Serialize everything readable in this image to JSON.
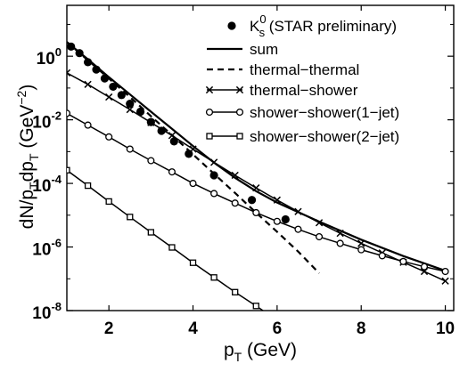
{
  "chart_data": {
    "type": "line",
    "xlabel": "p_T (GeV)",
    "ylabel": "dN/p_T dp_T (GeV^-2)",
    "xlim": [
      1,
      10.2
    ],
    "ylim_log10": [
      -8,
      1.6
    ],
    "yscale": "log",
    "grid": false,
    "legend_position": "top-right",
    "x_ticks": [
      {
        "value": 2,
        "label": "2"
      },
      {
        "value": 4,
        "label": "4"
      },
      {
        "value": 6,
        "label": "6"
      },
      {
        "value": 8,
        "label": "8"
      },
      {
        "value": 10,
        "label": "10"
      }
    ],
    "y_ticks": [
      {
        "log10": 0,
        "base": "10",
        "exp": "0"
      },
      {
        "log10": -2,
        "base": "10",
        "exp": "-2"
      },
      {
        "log10": -4,
        "base": "10",
        "exp": "-4"
      },
      {
        "log10": -6,
        "base": "10",
        "exp": "-6"
      },
      {
        "log10": -8,
        "base": "10",
        "exp": "-8"
      }
    ],
    "series": [
      {
        "name": "K_s^0 (STAR preliminary)",
        "style": "points",
        "marker": "dot",
        "x": [
          1.1,
          1.3,
          1.5,
          1.7,
          1.9,
          2.1,
          2.3,
          2.5,
          2.75,
          3.0,
          3.25,
          3.55,
          3.9,
          4.5,
          5.4,
          6.2
        ],
        "y": [
          2.0,
          1.25,
          0.65,
          0.38,
          0.2,
          0.11,
          0.06,
          0.032,
          0.018,
          0.0085,
          0.0045,
          0.0021,
          0.00085,
          0.00018,
          3e-05,
          7.4e-06
        ]
      },
      {
        "name": "sum",
        "style": "solid",
        "marker": "none",
        "x": [
          1.0,
          1.5,
          2.0,
          2.5,
          3.0,
          3.5,
          4.0,
          4.5,
          5.0,
          5.5,
          6.0,
          7.0,
          8.0,
          9.0,
          10.0
        ],
        "y": [
          2.8,
          0.8,
          0.22,
          0.063,
          0.018,
          0.0052,
          0.0015,
          0.00045,
          0.00015,
          5.7e-05,
          2.5e-05,
          6.3e-06,
          1.7e-06,
          5.2e-07,
          1.8e-07
        ]
      },
      {
        "name": "thermal-thermal",
        "style": "dashed",
        "marker": "none",
        "x": [
          1.0,
          1.5,
          2.0,
          2.5,
          3.0,
          3.5,
          4.0,
          4.5,
          5.0,
          5.5,
          6.0,
          6.5,
          7.0
        ],
        "y": [
          2.8,
          0.75,
          0.2,
          0.052,
          0.013,
          0.0033,
          0.00082,
          0.0002,
          5e-05,
          1.2e-05,
          3e-06,
          7.2e-07,
          1.5e-07
        ]
      },
      {
        "name": "thermal-shower",
        "style": "solid",
        "marker": "x",
        "x": [
          1.0,
          1.5,
          2.0,
          2.5,
          3.0,
          3.5,
          4.0,
          4.5,
          5.0,
          5.5,
          6.0,
          6.5,
          7.0,
          7.5,
          8.0,
          8.5,
          9.0,
          9.5,
          10.0
        ],
        "y": [
          0.3,
          0.13,
          0.052,
          0.021,
          0.0082,
          0.0032,
          0.0012,
          0.00046,
          0.00018,
          7.2e-05,
          3e-05,
          1.3e-05,
          5.8e-06,
          2.7e-06,
          1.3e-06,
          6.5e-07,
          3.3e-07,
          1.7e-07,
          8.5e-08
        ]
      },
      {
        "name": "shower-shower(1-jet)",
        "style": "solid",
        "marker": "circle",
        "x": [
          1.0,
          1.5,
          2.0,
          2.5,
          3.0,
          3.5,
          4.0,
          4.5,
          5.0,
          5.5,
          6.0,
          6.5,
          7.0,
          7.5,
          8.0,
          8.5,
          9.0,
          9.5,
          10.0
        ],
        "y": [
          0.016,
          0.0068,
          0.0029,
          0.0012,
          0.00052,
          0.00023,
          0.0001,
          4.8e-05,
          2.4e-05,
          1.2e-05,
          6.4e-06,
          3.6e-06,
          2.1e-06,
          1.3e-06,
          8.2e-07,
          5.3e-07,
          3.5e-07,
          2.4e-07,
          1.7e-07
        ]
      },
      {
        "name": "shower-shower(2-jet)",
        "style": "solid",
        "marker": "square",
        "x": [
          1.0,
          1.5,
          2.0,
          2.5,
          3.0,
          3.5,
          4.0,
          4.5,
          5.0,
          5.5,
          6.0,
          6.5
        ],
        "y": [
          0.00026,
          8.5e-05,
          2.7e-05,
          8.8e-06,
          2.9e-06,
          9.7e-07,
          3.2e-07,
          1.1e-07,
          3.8e-08,
          1.4e-08,
          5e-09,
          2e-09
        ]
      }
    ],
    "legend": [
      {
        "series": 0,
        "label_main": "K",
        "label_sup": "0",
        "label_sub": "s",
        "label_rest": " (STAR preliminary)"
      },
      {
        "series": 1,
        "label_main": "sum",
        "label_sup": "",
        "label_sub": "",
        "label_rest": ""
      },
      {
        "series": 2,
        "label_main": "thermal−thermal",
        "label_sup": "",
        "label_sub": "",
        "label_rest": ""
      },
      {
        "series": 3,
        "label_main": "thermal−shower",
        "label_sup": "",
        "label_sub": "",
        "label_rest": ""
      },
      {
        "series": 4,
        "label_main": "shower−shower(1−jet)",
        "label_sup": "",
        "label_sub": "",
        "label_rest": ""
      },
      {
        "series": 5,
        "label_main": "shower−shower(2−jet)",
        "label_sup": "",
        "label_sub": "",
        "label_rest": ""
      }
    ],
    "axis_text": {
      "x_main": "p",
      "x_sub": "T",
      "x_rest": " (GeV)",
      "y_p1": "dN/p",
      "y_s1": "T",
      "y_p2": "dp",
      "y_s2": "T",
      "y_p3": " (GeV",
      "y_sup": "−2",
      "y_p4": ")"
    }
  }
}
